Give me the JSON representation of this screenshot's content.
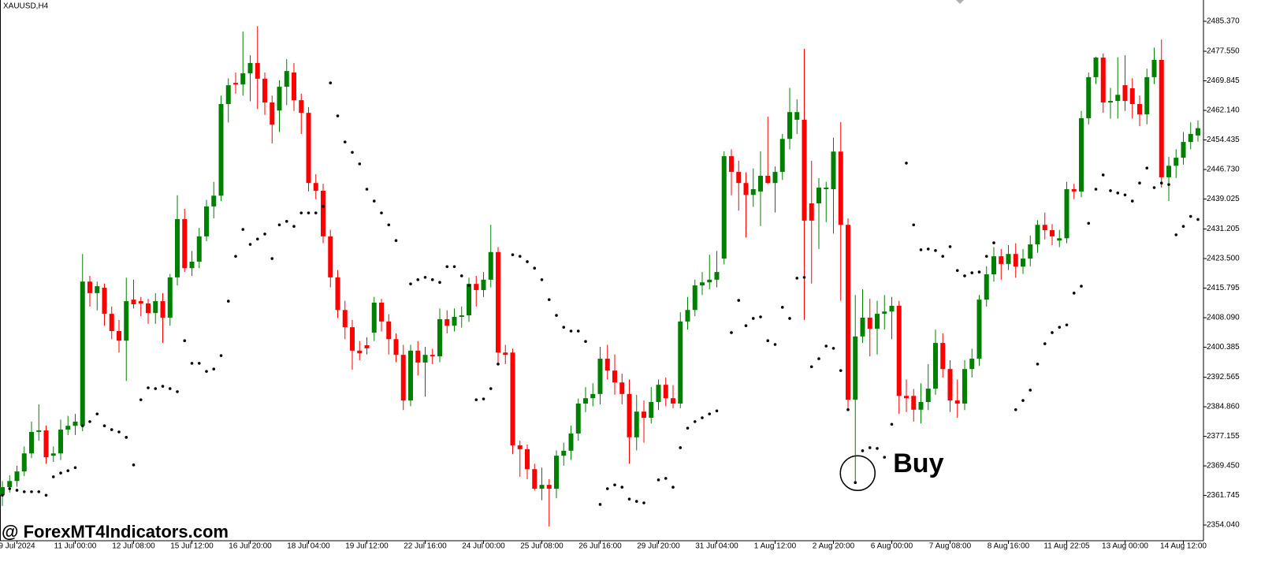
{
  "chart_data": {
    "type": "candlestick",
    "symbol_label": "XAUUSD,H4",
    "annotation": "Buy",
    "watermark": "@ ForexMT4Indicators.com",
    "up_color": "#008000",
    "down_color": "#ff0000",
    "categories": [
      null,
      null,
      "9 Jul 2024",
      null,
      null,
      null,
      null,
      null,
      null,
      null,
      "11 Jul 00:00",
      null,
      null,
      null,
      null,
      null,
      null,
      null,
      "12 Jul 08:00",
      null,
      null,
      null,
      null,
      null,
      null,
      null,
      "15 Jul 12:00",
      null,
      null,
      null,
      null,
      null,
      null,
      null,
      "16 Jul 20:00",
      null,
      null,
      null,
      null,
      null,
      null,
      null,
      "18 Jul 04:00",
      null,
      null,
      null,
      null,
      null,
      null,
      null,
      "19 Jul 12:00",
      null,
      null,
      null,
      null,
      null,
      null,
      null,
      "22 Jul 16:00",
      null,
      null,
      null,
      null,
      null,
      null,
      null,
      "24 Jul 00:00",
      null,
      null,
      null,
      null,
      null,
      null,
      null,
      "25 Jul 08:00",
      null,
      null,
      null,
      null,
      null,
      null,
      null,
      "26 Jul 16:00",
      null,
      null,
      null,
      null,
      null,
      null,
      null,
      "29 Jul 20:00",
      null,
      null,
      null,
      null,
      null,
      null,
      null,
      "31 Jul 04:00",
      null,
      null,
      null,
      null,
      null,
      null,
      null,
      "1 Aug 12:00",
      null,
      null,
      null,
      null,
      null,
      null,
      null,
      "2 Aug 20:00",
      null,
      null,
      null,
      null,
      null,
      null,
      null,
      "6 Aug 00:00",
      null,
      null,
      null,
      null,
      null,
      null,
      null,
      "7 Aug 08:00",
      null,
      null,
      null,
      null,
      null,
      null,
      null,
      "8 Aug 16:00",
      null,
      null,
      null,
      null,
      null,
      null,
      null,
      "11 Aug 22:05",
      null,
      null,
      null,
      null,
      null,
      null,
      null,
      "13 Aug 00:00",
      null,
      null,
      null,
      null,
      null,
      null,
      null,
      "14 Aug 12:00",
      null,
      null
    ],
    "open": [
      2361.8,
      2363.9,
      2365.5,
      2368.0,
      2372.7,
      2378.3,
      2378.7,
      2372.1,
      2372.7,
      2378.9,
      2379.9,
      2379.9,
      2417.5,
      2414.5,
      2415.9,
      2409.1,
      2404.6,
      2402.1,
      2412.8,
      2412.4,
      2411.8,
      2409.3,
      2412.4,
      2408.1,
      2418.6,
      2433.8,
      2421.0,
      2422.7,
      2429.3,
      2437.1,
      2439.9,
      2463.8,
      2469.3,
      2468.9,
      2471.8,
      2474.5,
      2470.4,
      2464.2,
      2462.1,
      2468.3,
      2472.0,
      2464.8,
      2461.5,
      2443.2,
      2441.2,
      2429.3,
      2418.6,
      2410.1,
      2405.6,
      2399.5,
      2400.9,
      2404.2,
      2412.0,
      2407.1,
      2402.5,
      2398.4,
      2386.5,
      2399.5,
      2396.4,
      2398.4,
      2398.0,
      2407.7,
      2406.0,
      2408.3,
      2408.7,
      2416.9,
      2415.3,
      2418.0,
      2425.2,
      2399.0,
      2399.0,
      2374.8,
      2373.8,
      2368.6,
      2363.5,
      2364.5,
      2363.5,
      2372.1,
      2373.4,
      2377.9,
      2385.7,
      2387.1,
      2388.2,
      2397.4,
      2394.3,
      2391.2,
      2388.2,
      2376.9,
      2383.6,
      2382.0,
      2386.1,
      2390.6,
      2387.1,
      2385.7,
      2407.1,
      2410.1,
      2416.5,
      2417.3,
      2418.0,
      2423.5,
      2450.2,
      2446.1,
      2443.2,
      2440.1,
      2441.0,
      2445.1,
      2443.2,
      2446.1,
      2454.7,
      2459.7,
      2459.7,
      2437.9,
      2437.9,
      2441.6,
      2441.6,
      2451.4,
      2432.3,
      2386.7,
      2403.2,
      2408.1,
      2405.2,
      2409.1,
      2409.7,
      2411.2,
      2387.7,
      2387.7,
      2384.1,
      2386.1,
      2389.6,
      2401.5,
      2394.7,
      2386.5,
      2385.7,
      2394.7,
      2397.4,
      2412.8,
      2419.4,
      2424.1,
      2422.1,
      2424.7,
      2421.4,
      2423.5,
      2427.2,
      2432.3,
      2430.9,
      2428.2,
      2428.8,
      2441.6,
      2441.0,
      2460.1,
      2470.8,
      2475.9,
      2464.2,
      2464.6,
      2468.7,
      2467.9,
      2463.8,
      2461.1,
      2470.8,
      2475.3,
      2444.7,
      2447.7,
      2449.8,
      2453.9,
      2455.6
    ],
    "high": [
      2365.5,
      2367.0,
      2369.5,
      2374.5,
      2381.0,
      2385.5,
      2380.0,
      2374.5,
      2381.5,
      2382.5,
      2383.0,
      2424.7,
      2419.0,
      2417.5,
      2417.0,
      2411.0,
      2407.5,
      2418.5,
      2418.0,
      2413.5,
      2413.0,
      2414.5,
      2414.5,
      2419.5,
      2440.0,
      2436.5,
      2425.5,
      2431.5,
      2438.8,
      2443.5,
      2466.0,
      2470.5,
      2472.0,
      2482.7,
      2476.5,
      2484.1,
      2472.0,
      2466.0,
      2470.0,
      2475.5,
      2474.5,
      2466.5,
      2463.0,
      2445.5,
      2443.0,
      2431.0,
      2420.5,
      2412.5,
      2407.5,
      2402.0,
      2403.0,
      2413.5,
      2413.0,
      2409.0,
      2404.0,
      2401.0,
      2401.0,
      2402.0,
      2400.5,
      2400.0,
      2410.5,
      2410.0,
      2410.5,
      2411.0,
      2418.5,
      2419.0,
      2420.0,
      2432.3,
      2426.5,
      2401.0,
      2400.0,
      2376.0,
      2375.0,
      2370.0,
      2369.0,
      2366.0,
      2373.5,
      2375.5,
      2380.0,
      2387.0,
      2390.0,
      2391.0,
      2400.5,
      2401.0,
      2398.5,
      2393.5,
      2392.0,
      2388.0,
      2386.5,
      2390.0,
      2392.0,
      2392.5,
      2390.5,
      2409.5,
      2413.5,
      2418.0,
      2420.0,
      2424.5,
      2425.5,
      2451.5,
      2452.0,
      2449.0,
      2446.0,
      2447.0,
      2451.5,
      2460.5,
      2447.5,
      2456.0,
      2468.0,
      2465.0,
      2478.2,
      2449.0,
      2444.5,
      2443.5,
      2455.0,
      2459.1,
      2434.0,
      2414.0,
      2415.5,
      2413.0,
      2412.5,
      2414.0,
      2413.5,
      2412.5,
      2392.0,
      2389.5,
      2391.0,
      2396.0,
      2405.0,
      2404.0,
      2397.0,
      2392.0,
      2397.0,
      2400.0,
      2414.0,
      2421.5,
      2426.5,
      2426.0,
      2427.0,
      2427.5,
      2426.0,
      2429.5,
      2433.5,
      2435.5,
      2432.5,
      2431.0,
      2443.5,
      2443.0,
      2462.0,
      2472.0,
      2476.1,
      2477.0,
      2468.0,
      2476.0,
      2476.5,
      2470.5,
      2466.0,
      2473.0,
      2478.5,
      2480.6,
      2450.0,
      2452.0,
      2456.5,
      2459.0,
      2459.5
    ],
    "low": [
      2359.0,
      2362.5,
      2364.0,
      2366.8,
      2371.5,
      2376.0,
      2370.0,
      2370.5,
      2371.0,
      2377.5,
      2377.5,
      2378.5,
      2411.0,
      2410.0,
      2406.0,
      2402.5,
      2399.0,
      2391.6,
      2410.5,
      2408.5,
      2406.5,
      2406.5,
      2401.5,
      2406.0,
      2416.5,
      2420.0,
      2419.0,
      2421.0,
      2428.0,
      2434.0,
      2438.5,
      2459.0,
      2466.5,
      2466.0,
      2464.5,
      2462.5,
      2461.0,
      2453.5,
      2456.5,
      2463.5,
      2462.0,
      2456.0,
      2441.0,
      2439.0,
      2427.5,
      2416.0,
      2408.0,
      2402.5,
      2394.5,
      2397.0,
      2398.5,
      2402.0,
      2404.5,
      2398.5,
      2396.5,
      2384.0,
      2385.0,
      2393.0,
      2387.5,
      2396.0,
      2396.5,
      2404.0,
      2404.5,
      2405.5,
      2407.0,
      2411.0,
      2413.5,
      2416.0,
      2396.0,
      2396.0,
      2372.5,
      2366.6,
      2366.0,
      2363.0,
      2360.5,
      2353.6,
      2361.0,
      2369.5,
      2371.0,
      2376.0,
      2383.5,
      2385.0,
      2385.5,
      2392.0,
      2388.0,
      2385.5,
      2370.0,
      2373.5,
      2375.5,
      2380.5,
      2384.0,
      2385.0,
      2384.5,
      2384.5,
      2405.0,
      2408.5,
      2414.0,
      2415.5,
      2416.0,
      2422.0,
      2440.0,
      2436.0,
      2429.0,
      2437.0,
      2432.0,
      2443.0,
      2435.5,
      2444.0,
      2452.0,
      2456.0,
      2407.5,
      2417.0,
      2426.0,
      2433.0,
      2430.0,
      2412.5,
      2384.1,
      2365.1,
      2401.5,
      2398.0,
      2398.5,
      2405.0,
      2402.5,
      2383.0,
      2383.5,
      2381.0,
      2380.5,
      2384.0,
      2388.0,
      2392.5,
      2383.5,
      2382.0,
      2384.0,
      2392.5,
      2395.5,
      2411.0,
      2417.5,
      2418.0,
      2420.5,
      2418.5,
      2419.5,
      2421.5,
      2425.0,
      2428.5,
      2427.0,
      2426.5,
      2427.5,
      2439.0,
      2439.5,
      2458.5,
      2469.0,
      2461.5,
      2460.0,
      2460.0,
      2462.0,
      2460.0,
      2458.0,
      2458.5,
      2469.0,
      2442.0,
      2438.5,
      2444.5,
      2448.0,
      2452.0,
      2454.0
    ],
    "close": [
      2363.9,
      2365.5,
      2368.0,
      2372.7,
      2378.3,
      2378.7,
      2371.7,
      2372.7,
      2378.9,
      2379.9,
      2381.0,
      2417.5,
      2414.5,
      2416.3,
      2409.1,
      2404.6,
      2402.1,
      2412.4,
      2411.6,
      2411.8,
      2409.3,
      2412.4,
      2408.1,
      2418.6,
      2433.8,
      2421.0,
      2422.7,
      2429.3,
      2437.1,
      2439.9,
      2463.8,
      2468.7,
      2468.9,
      2471.8,
      2474.5,
      2470.4,
      2464.2,
      2458.4,
      2468.3,
      2472.4,
      2464.8,
      2461.5,
      2443.2,
      2441.2,
      2429.3,
      2418.6,
      2410.1,
      2405.6,
      2399.5,
      2398.8,
      2400.1,
      2412.0,
      2407.1,
      2402.5,
      2398.4,
      2386.5,
      2399.5,
      2396.4,
      2398.4,
      2398.0,
      2407.7,
      2406.0,
      2408.3,
      2408.7,
      2416.9,
      2415.3,
      2418.0,
      2425.2,
      2399.0,
      2398.4,
      2374.8,
      2373.8,
      2368.6,
      2363.5,
      2364.5,
      2363.5,
      2372.1,
      2373.4,
      2377.9,
      2385.7,
      2387.1,
      2388.2,
      2397.4,
      2394.3,
      2391.2,
      2388.2,
      2376.9,
      2383.6,
      2382.0,
      2386.1,
      2390.6,
      2387.1,
      2385.7,
      2407.1,
      2410.1,
      2416.5,
      2417.3,
      2418.0,
      2420.0,
      2450.2,
      2446.1,
      2443.2,
      2440.1,
      2441.6,
      2445.1,
      2443.2,
      2446.1,
      2454.7,
      2461.7,
      2461.7,
      2433.4,
      2433.4,
      2442.0,
      2442.0,
      2451.4,
      2432.3,
      2386.7,
      2403.2,
      2408.1,
      2405.2,
      2409.1,
      2409.7,
      2411.2,
      2387.7,
      2387.1,
      2384.1,
      2386.1,
      2389.6,
      2401.5,
      2394.7,
      2386.5,
      2385.7,
      2394.7,
      2397.4,
      2412.8,
      2419.4,
      2424.1,
      2422.1,
      2424.7,
      2421.4,
      2423.5,
      2427.2,
      2432.3,
      2430.9,
      2429.3,
      2428.8,
      2441.6,
      2441.0,
      2460.1,
      2470.8,
      2475.9,
      2464.2,
      2464.6,
      2466.2,
      2464.6,
      2463.8,
      2461.1,
      2470.8,
      2475.3,
      2444.7,
      2447.7,
      2449.8,
      2453.9,
      2456.0,
      2457.5
    ],
    "dots": {
      "color": "#000000",
      "values": [
        2361.8,
        2363.5,
        2363.1,
        2362.7,
        2362.7,
        2362.7,
        2361.8,
        2366.6,
        2367.6,
        2368.2,
        2369.0,
        2379.9,
        2381.0,
        2383.0,
        2379.9,
        2378.9,
        2378.3,
        2376.9,
        2369.7,
        2386.7,
        2389.8,
        2389.6,
        2390.2,
        2389.6,
        2388.8,
        2402.1,
        2396.2,
        2396.2,
        2394.1,
        2394.7,
        2398.2,
        2412.4,
        2424.1,
        2431.1,
        2427.2,
        2428.6,
        2429.9,
        2423.5,
        2432.3,
        2433.2,
        2431.9,
        2435.4,
        2435.4,
        2435.4,
        2437.1,
        2469.3,
        2460.7,
        2453.9,
        2451.2,
        2448.2,
        2441.6,
        2438.5,
        2435.4,
        2432.3,
        2428.2,
        null,
        2416.9,
        2418.0,
        2418.6,
        2418.0,
        2417.3,
        2421.4,
        2421.4,
        2419.0,
        2416.5,
        2386.7,
        2386.9,
        2389.6,
        2396.0,
        null,
        2424.5,
        2424.1,
        2422.7,
        2421.0,
        2418.0,
        2412.8,
        2408.7,
        2405.6,
        2404.6,
        2404.6,
        2401.9,
        null,
        2359.4,
        2363.5,
        2364.5,
        2363.9,
        2360.8,
        2360.2,
        2359.8,
        null,
        2365.8,
        2366.2,
        2363.9,
        2374.2,
        2379.3,
        2381.0,
        2382.0,
        2383.0,
        2383.8,
        null,
        2404.2,
        2412.6,
        2406.0,
        2407.9,
        2408.3,
        2402.1,
        2401.1,
        2410.8,
        2407.9,
        2418.4,
        2418.6,
        2395.3,
        2397.4,
        2400.7,
        2400.1,
        2394.3,
        2384.1,
        2365.1,
        2373.4,
        2374.2,
        2374.0,
        2371.7,
        2380.3,
        null,
        2448.4,
        2432.3,
        2425.8,
        2426.0,
        2425.6,
        2424.1,
        2426.6,
        2420.4,
        2419.0,
        2419.8,
        2420.0,
        2424.1,
        2427.6,
        null,
        null,
        2384.1,
        2386.5,
        2389.2,
        2396.0,
        2401.3,
        2404.2,
        2405.6,
        2406.2,
        2414.5,
        2416.3,
        2432.7,
        2441.6,
        2445.3,
        2441.2,
        2440.6,
        2440.1,
        2438.5,
        2443.2,
        2447.1,
        2442.0,
        2443.2,
        2442.8,
        2429.7,
        2431.9,
        2434.5,
        2433.7
      ]
    },
    "ylim": [
      2349.94,
      2490.92
    ],
    "yticks": [
      {
        "value": 2485.37,
        "label": "2485.370"
      },
      {
        "value": 2477.55,
        "label": "2477.550"
      },
      2469.845,
      {
        "value": 2462.14,
        "label": "2462.140"
      },
      2454.435,
      {
        "value": 2446.73,
        "label": "2446.730"
      },
      2439.025,
      2431.205,
      {
        "value": 2423.5,
        "label": "2423.500"
      },
      2415.795,
      {
        "value": 2408.09,
        "label": "2408.090"
      },
      2400.385,
      2392.565,
      {
        "value": 2384.86,
        "label": "2384.860"
      },
      2377.155,
      {
        "value": 2369.45,
        "label": "2369.450"
      },
      2361.745,
      {
        "value": 2354.04,
        "label": "2354.040"
      }
    ],
    "grid": false,
    "buy_index": 117
  }
}
